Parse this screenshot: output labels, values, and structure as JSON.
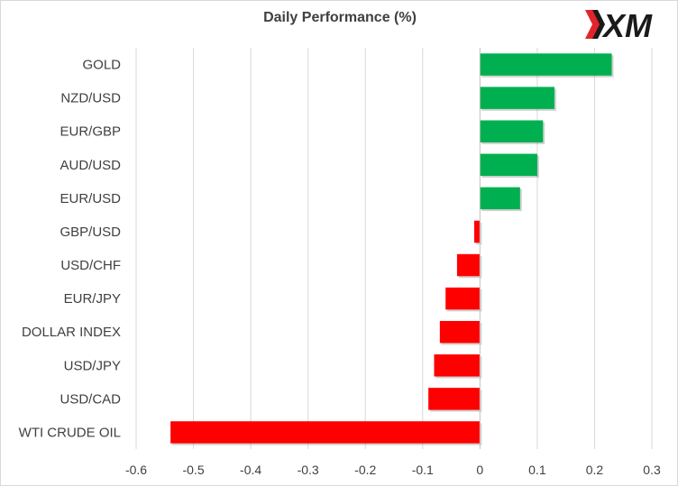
{
  "logo": {
    "text": "XM"
  },
  "chart_data": {
    "type": "bar",
    "orientation": "horizontal",
    "title": "Daily Performance (%)",
    "xlabel": "",
    "ylabel": "",
    "categories": [
      "GOLD",
      "NZD/USD",
      "EUR/GBP",
      "AUD/USD",
      "EUR/USD",
      "GBP/USD",
      "USD/CHF",
      "EUR/JPY",
      "DOLLAR INDEX",
      "USD/JPY",
      "USD/CAD",
      "WTI CRUDE OIL"
    ],
    "values": [
      0.23,
      0.13,
      0.11,
      0.1,
      0.07,
      -0.01,
      -0.04,
      -0.06,
      -0.07,
      -0.08,
      -0.09,
      -0.54
    ],
    "xlim": [
      -0.6,
      0.3
    ],
    "xticks": [
      "-0.6",
      "-0.5",
      "-0.4",
      "-0.3",
      "-0.2",
      "-0.1",
      "0",
      "0.1",
      "0.2",
      "0.3"
    ],
    "grid": true,
    "colors": {
      "positive": "#00b050",
      "negative": "#ff0000",
      "grid": "#d9d9d9",
      "text": "#404040"
    }
  }
}
